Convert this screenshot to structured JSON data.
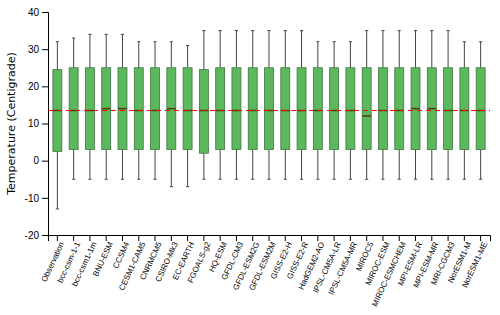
{
  "chart_data": {
    "type": "box",
    "ylabel": "Temperature (Centigrade)",
    "categories": [
      "Observation",
      "bcc-csm-1-1",
      "bcc-csm1-1m",
      "BNU-ESM",
      "CCSM4",
      "CESM1-CAM5",
      "CNRMCM5",
      "CSIRO-Mk3",
      "EC-EARTH",
      "FGOALS-g2",
      "HQ-ESM",
      "GFDL-CM3",
      "GFDL-ESM2G",
      "GFDL-ESM2M",
      "GISS-E2-H",
      "GISS-E2-R",
      "HadGEM2-AO",
      "IPSL-CM5A-LR",
      "IPSL-CM5A-MR",
      "MIROC5",
      "MIROC-ESM",
      "MIROC-ESMCHEM",
      "MPI-ESM-LR",
      "MPI-ESM-MR",
      "MRI-CGCM3",
      "NorESM1-M",
      "NorESM1-ME"
    ],
    "min": [
      -13,
      -5,
      -5,
      -5,
      -5,
      -5,
      -5,
      -7,
      -7,
      -5,
      -5,
      -5,
      -5,
      -5,
      -5,
      -5,
      -5,
      -5,
      -5,
      -5,
      -5,
      -5,
      -5,
      -5,
      -5,
      -5,
      -5
    ],
    "q1": [
      2.5,
      3,
      3,
      3,
      3,
      3,
      3,
      3,
      3,
      2,
      3,
      3,
      3,
      3,
      3,
      3,
      3,
      3,
      3,
      3,
      3,
      3,
      3,
      3,
      3,
      3,
      3
    ],
    "median": [
      13.5,
      13.5,
      13.5,
      14,
      14,
      13.5,
      13.5,
      14,
      13.5,
      13.5,
      13.5,
      13.5,
      13.5,
      13.5,
      13.5,
      13.5,
      13.5,
      13.5,
      13.5,
      12,
      13.5,
      13.5,
      14,
      14,
      13.5,
      13.5,
      13.5
    ],
    "q3": [
      24.5,
      25,
      25,
      25,
      25,
      25,
      25,
      25,
      25,
      24.5,
      25,
      25,
      25,
      25,
      25,
      25,
      25,
      25,
      25,
      25,
      25,
      25,
      25,
      25,
      25,
      25,
      25
    ],
    "max": [
      32,
      33,
      34,
      34,
      34,
      32,
      32,
      32,
      31,
      35,
      35,
      35,
      35,
      35,
      35,
      35,
      32,
      32,
      32,
      35,
      35,
      35,
      35,
      35,
      35,
      32,
      32
    ],
    "color": "#5cb85c",
    "reference_line": {
      "value": 13.5,
      "color": "red",
      "line_style": "dashed"
    },
    "ylim": [
      -20,
      40
    ],
    "yticks": [
      -20,
      -10,
      0,
      10,
      20,
      30,
      40
    ],
    "grid": false
  }
}
